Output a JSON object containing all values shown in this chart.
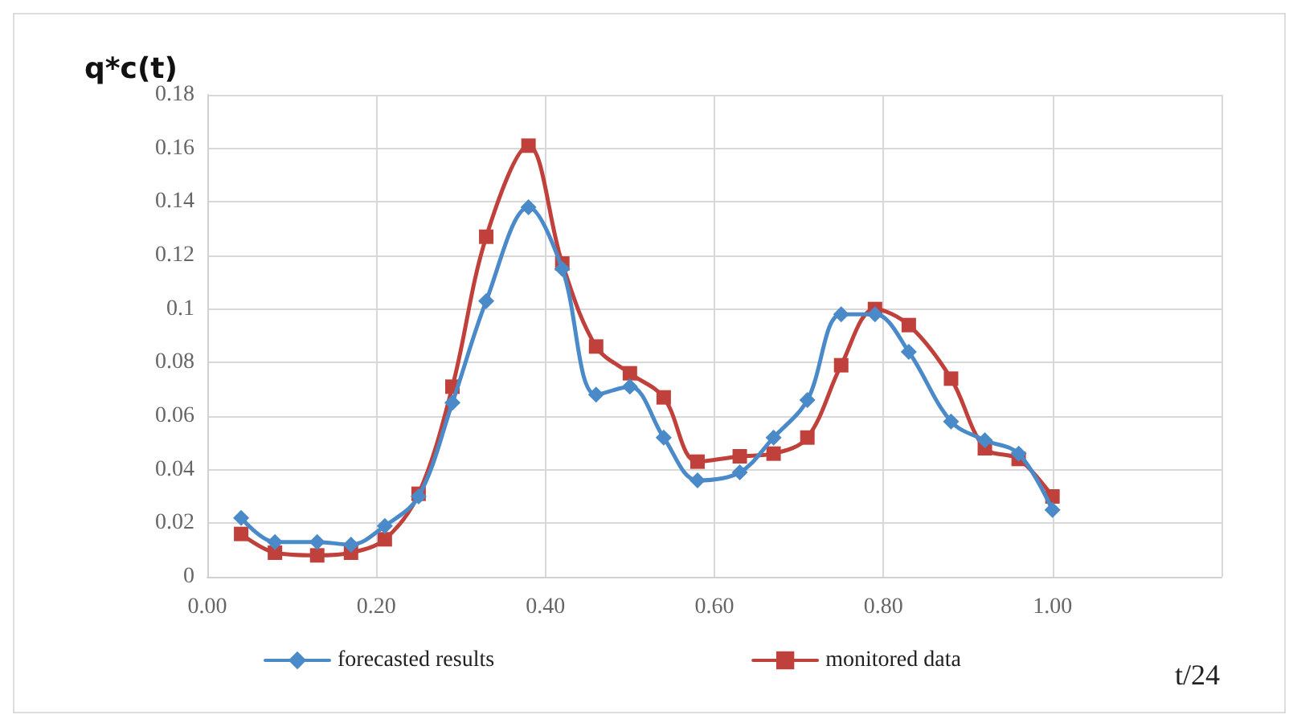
{
  "chart_data": {
    "type": "line",
    "xlabel": "t/24",
    "ylabel": "q*c(t)",
    "grid": true,
    "legend": "bottom",
    "line_style": "solid",
    "xlim": [
      0,
      1.2
    ],
    "xticks": [
      {
        "value": 0,
        "label": "0.00"
      },
      {
        "value": 0.2,
        "label": "0.20"
      },
      {
        "value": 0.4,
        "label": "0.40"
      },
      {
        "value": 0.6,
        "label": "0.60"
      },
      {
        "value": 0.8,
        "label": "0.80"
      },
      {
        "value": 1,
        "label": "1.00"
      },
      {
        "value": 1.2,
        "label": null
      }
    ],
    "ylim": [
      0,
      0.18
    ],
    "yticks": [
      0,
      0.02,
      0.04,
      0.06,
      0.08,
      0.1,
      0.12,
      0.14,
      0.16,
      0.18
    ],
    "x": [
      0.04,
      0.08,
      0.13,
      0.17,
      0.21,
      0.25,
      0.29,
      0.33,
      0.38,
      0.42,
      0.46,
      0.5,
      0.54,
      0.58,
      0.63,
      0.67,
      0.71,
      0.75,
      0.79,
      0.83,
      0.88,
      0.92,
      0.96,
      1
    ],
    "series": [
      {
        "name": "forecasted results",
        "color": "#4a8ac8",
        "marker": "diamond",
        "values": [
          0.022,
          0.013,
          0.013,
          0.012,
          0.019,
          0.03,
          0.065,
          0.103,
          0.138,
          0.115,
          0.068,
          0.071,
          0.052,
          0.036,
          0.039,
          0.052,
          0.066,
          0.098,
          0.098,
          0.084,
          0.058,
          0.051,
          0.046,
          0.025
        ]
      },
      {
        "name": "monitored data",
        "color": "#c0413c",
        "marker": "square",
        "values": [
          0.016,
          0.009,
          0.008,
          0.009,
          0.014,
          0.031,
          0.071,
          0.127,
          0.161,
          0.117,
          0.086,
          0.076,
          0.067,
          0.043,
          0.045,
          0.046,
          0.052,
          0.079,
          0.1,
          0.094,
          0.074,
          0.048,
          0.044,
          0.03
        ]
      }
    ]
  }
}
